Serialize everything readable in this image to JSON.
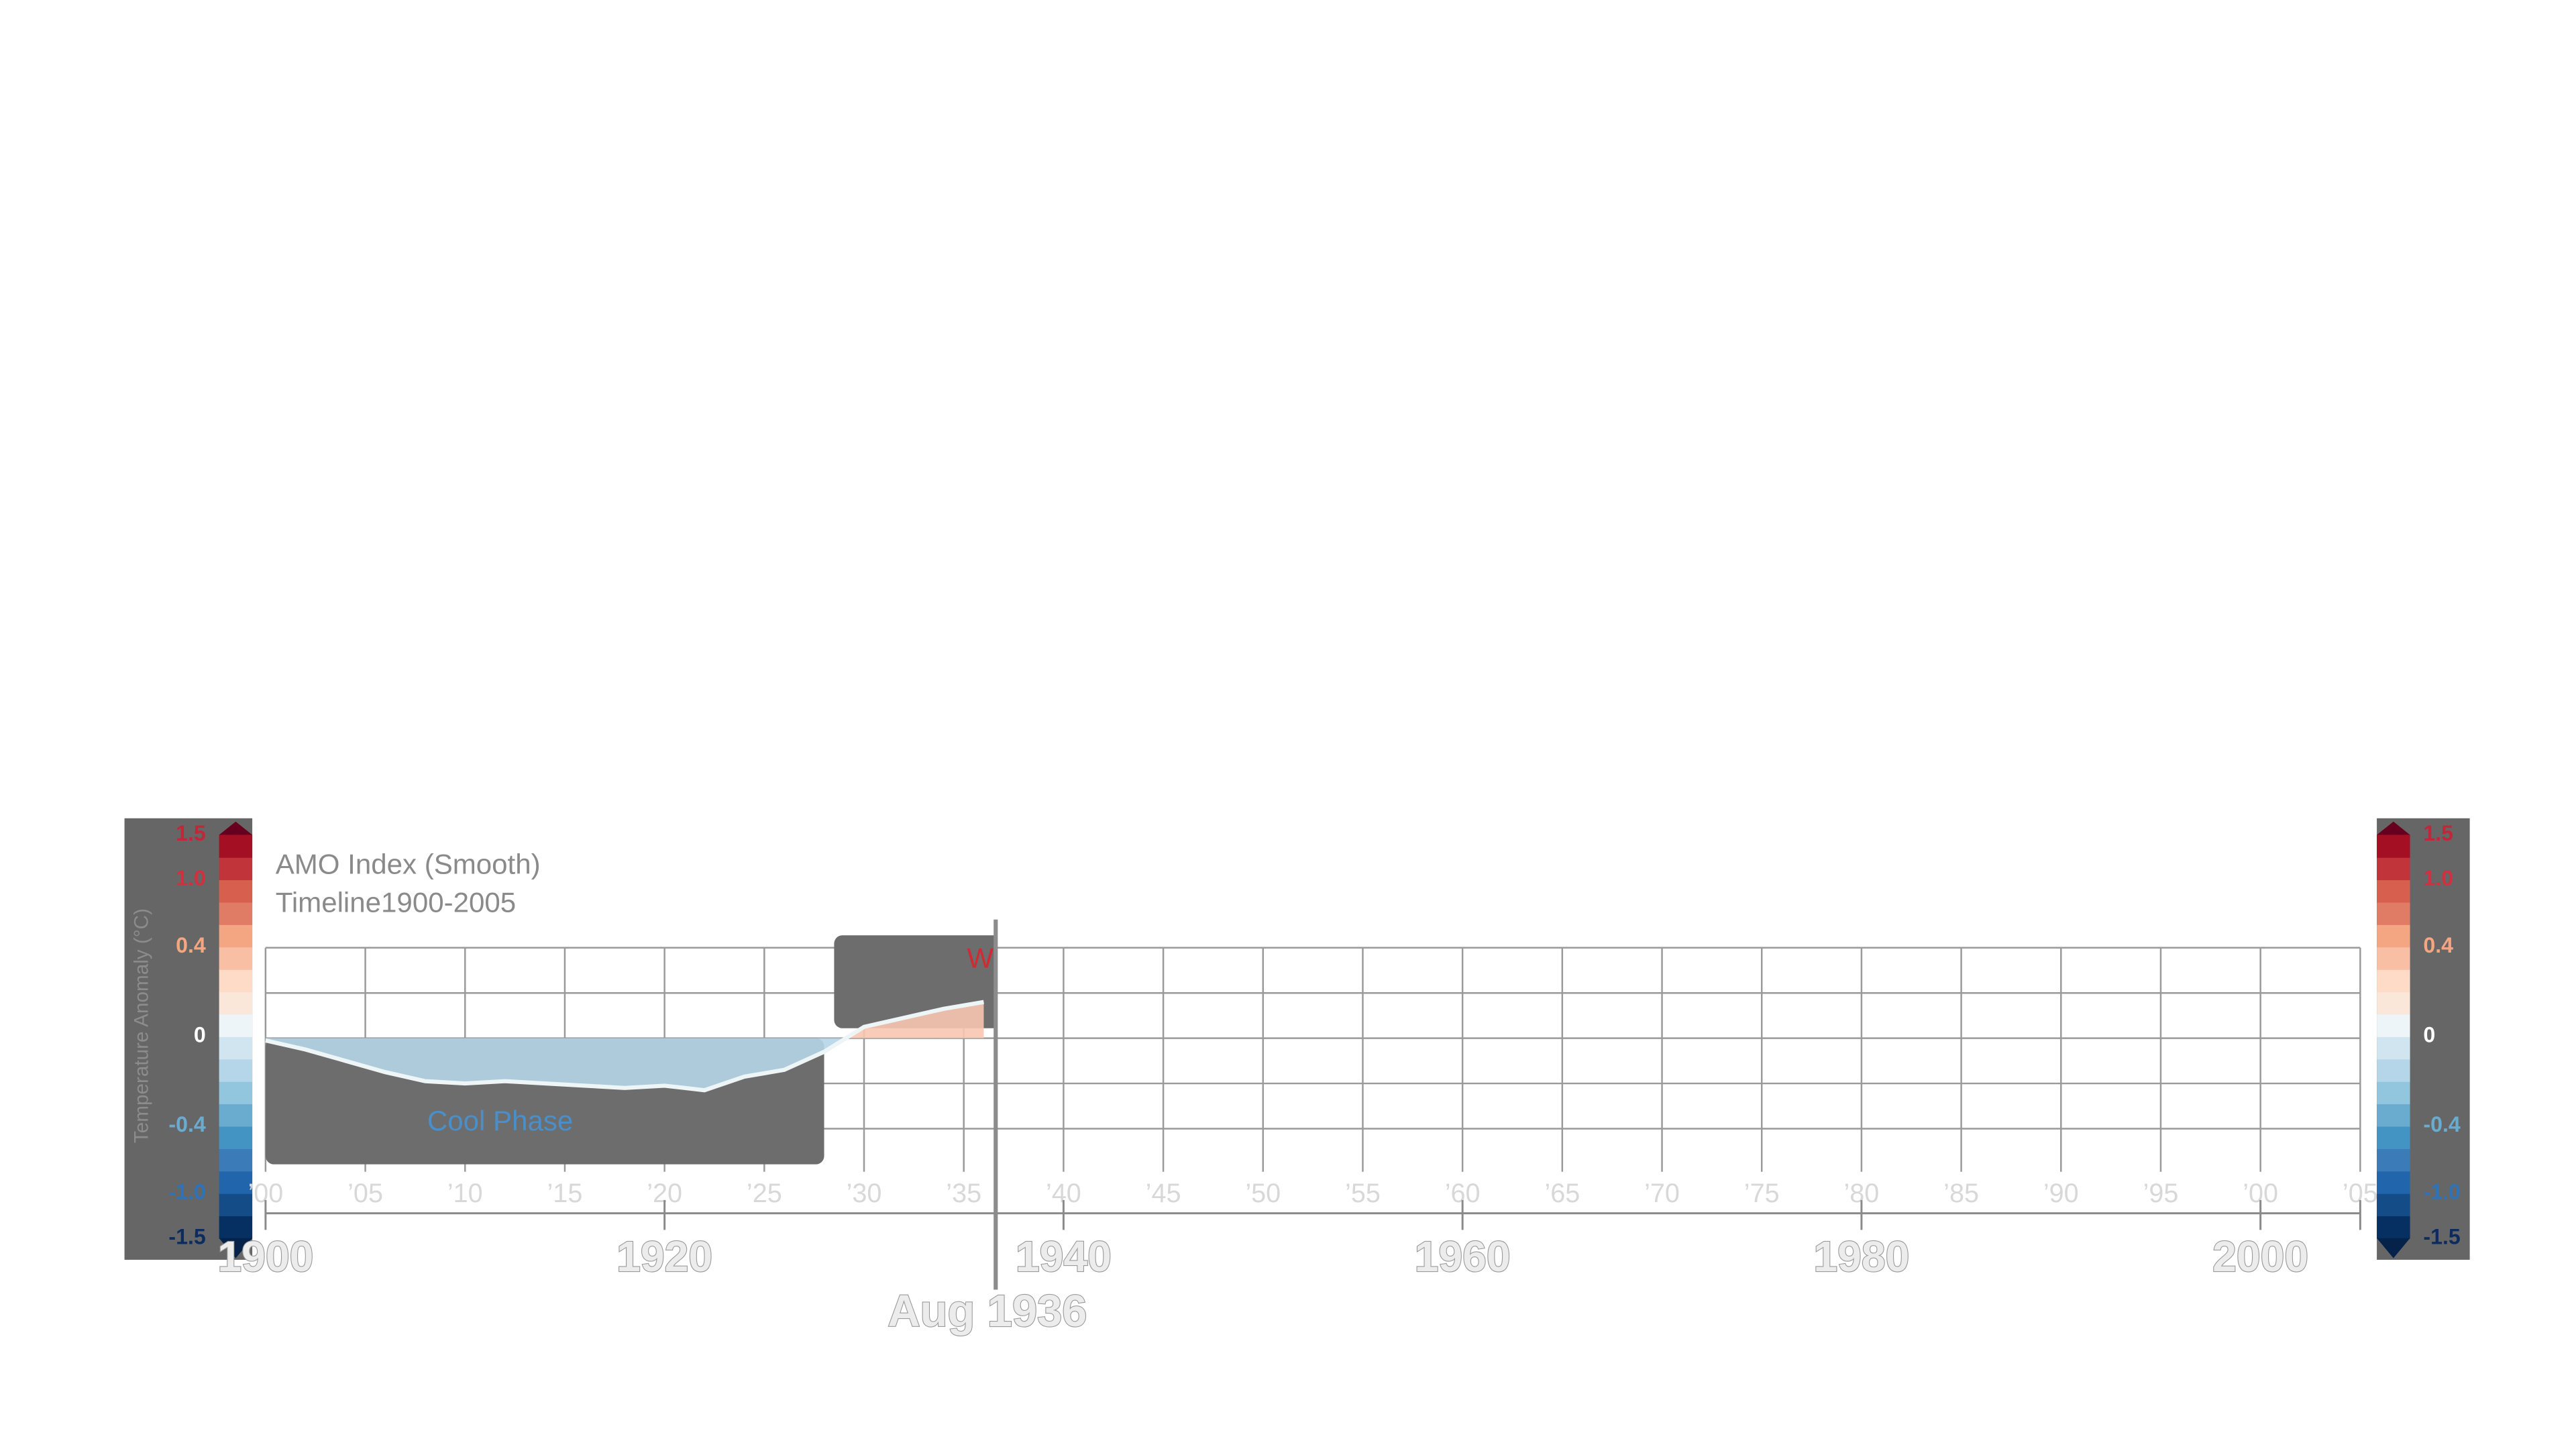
{
  "chart_data": {
    "type": "area",
    "title": "AMO Index (Smooth)",
    "subtitle": "Timeline1900-2005",
    "x": [
      1900,
      1902,
      1904,
      1906,
      1908,
      1910,
      1912,
      1914,
      1916,
      1918,
      1920,
      1922,
      1924,
      1926,
      1928,
      1930,
      1932,
      1934,
      1936
    ],
    "values": [
      -0.01,
      -0.05,
      -0.1,
      -0.15,
      -0.19,
      -0.2,
      -0.19,
      -0.2,
      -0.21,
      -0.22,
      -0.21,
      -0.23,
      -0.17,
      -0.14,
      -0.06,
      0.05,
      0.09,
      0.13,
      0.16
    ],
    "line_color": "#eef5f7",
    "positive_color": "#f7c6b0",
    "negative_color": "#b5d5e8",
    "xlim": [
      1900,
      2005
    ],
    "xticks": [
      1900,
      1920,
      1940,
      1960,
      1980,
      2000
    ],
    "minor_xticks": [
      {
        "value": 1900,
        "label": "’00"
      },
      {
        "value": 1905,
        "label": "’05"
      },
      {
        "value": 1910,
        "label": "’10"
      },
      {
        "value": 1915,
        "label": "’15"
      },
      {
        "value": 1920,
        "label": "’20"
      },
      {
        "value": 1925,
        "label": "’25"
      },
      {
        "value": 1930,
        "label": "’30"
      },
      {
        "value": 1935,
        "label": "’35"
      },
      {
        "value": 1940,
        "label": "’40"
      },
      {
        "value": 1945,
        "label": "’45"
      },
      {
        "value": 1950,
        "label": "’50"
      },
      {
        "value": 1955,
        "label": "’55"
      },
      {
        "value": 1960,
        "label": "’60"
      },
      {
        "value": 1965,
        "label": "’65"
      },
      {
        "value": 1970,
        "label": "’70"
      },
      {
        "value": 1975,
        "label": "’75"
      },
      {
        "value": 1980,
        "label": "’80"
      },
      {
        "value": 1985,
        "label": "’85"
      },
      {
        "value": 1990,
        "label": "’90"
      },
      {
        "value": 1995,
        "label": "’95"
      },
      {
        "value": 2000,
        "label": "’00"
      },
      {
        "value": 2005,
        "label": "’05"
      }
    ],
    "ylim": [
      -0.4,
      0.4
    ],
    "yticks": [
      -0.4,
      -0.2,
      0,
      0.2,
      0.4
    ],
    "grid": true,
    "phases": [
      {
        "label": "Cool Phase",
        "start": 1900,
        "end": 1928,
        "color": "#4a8fc9"
      },
      {
        "label": "W",
        "start": 1928.5,
        "end": 1965,
        "color": "#d02a35"
      }
    ],
    "cursor": {
      "value": 1936.6,
      "label": "Aug 1936"
    },
    "colorbar": {
      "label": "Temperature Anomaly (°C)",
      "boundaries": [
        -1.5,
        -1.25,
        -1.0,
        -0.8,
        -0.6,
        -0.4,
        -0.3,
        -0.2,
        -0.1,
        0,
        0.1,
        0.2,
        0.3,
        0.4,
        0.6,
        0.8,
        1.0,
        1.25,
        1.5
      ],
      "colors": [
        "#053061",
        "#134c87",
        "#2166ac",
        "#3a7bb8",
        "#4393c3",
        "#6aacd0",
        "#92c5de",
        "#b4d6e8",
        "#d1e5f0",
        "#eef5f9",
        "#fbe6da",
        "#fddbc7",
        "#f8bfa4",
        "#f4a582",
        "#e07b65",
        "#d6604d",
        "#c0343a",
        "#a50f24"
      ],
      "ticks": [
        1.5,
        {
          "value": 1,
          "label": "1.0"
        },
        0.4,
        0,
        -0.4,
        {
          "value": -1,
          "label": "-1.0"
        },
        -1.5
      ],
      "tick_colors": [
        "#c0283a",
        "#d0303f",
        "#f4a582",
        "#ffffff",
        "#6aacd0",
        "#2f72b6",
        "#0d2c5e"
      ]
    }
  }
}
